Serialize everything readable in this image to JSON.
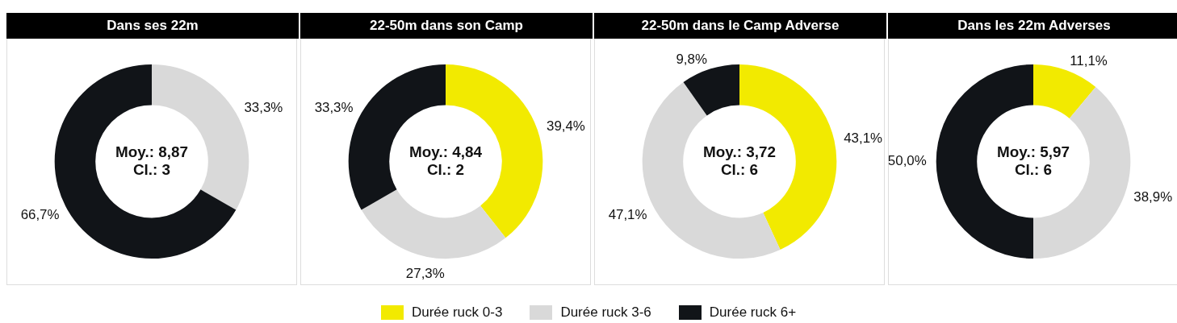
{
  "chart_data": [
    {
      "type": "donut",
      "title": "Dans ses 22m",
      "categories": [
        "Durée ruck 0-3",
        "Durée ruck 3-6",
        "Durée ruck 6+"
      ],
      "values": [
        0,
        33.3,
        66.7
      ],
      "colors": [
        "#f2ea00",
        "#d9d9d9",
        "#111418"
      ],
      "value_labels": [
        null,
        "33,3%",
        "66,7%"
      ],
      "annotations": [
        "Moy.: 8,87",
        "Cl.: 3"
      ],
      "legend": "bottom"
    },
    {
      "type": "donut",
      "title": "22-50m dans son Camp",
      "values": [
        39.4,
        27.3,
        33.3
      ],
      "colors": [
        "#f2ea00",
        "#d9d9d9",
        "#111418"
      ],
      "value_labels": [
        "39,4%",
        "27,3%",
        "33,3%"
      ],
      "annotations": [
        "Moy.: 4,84",
        "Cl.: 2"
      ]
    },
    {
      "type": "donut",
      "title": "22-50m dans le Camp Adverse",
      "values": [
        43.1,
        47.1,
        9.8
      ],
      "colors": [
        "#f2ea00",
        "#d9d9d9",
        "#111418"
      ],
      "value_labels": [
        "43,1%",
        "47,1%",
        "9,8%"
      ],
      "annotations": [
        "Moy.: 3,72",
        "Cl.: 6"
      ]
    },
    {
      "type": "donut",
      "title": "Dans les 22m Adverses",
      "values": [
        11.1,
        38.9,
        50.0
      ],
      "colors": [
        "#f2ea00",
        "#d9d9d9",
        "#111418"
      ],
      "value_labels": [
        "11,1%",
        "38,9%",
        "50,0%"
      ],
      "annotations": [
        "Moy.: 5,97",
        "Cl.: 6"
      ]
    }
  ]
}
